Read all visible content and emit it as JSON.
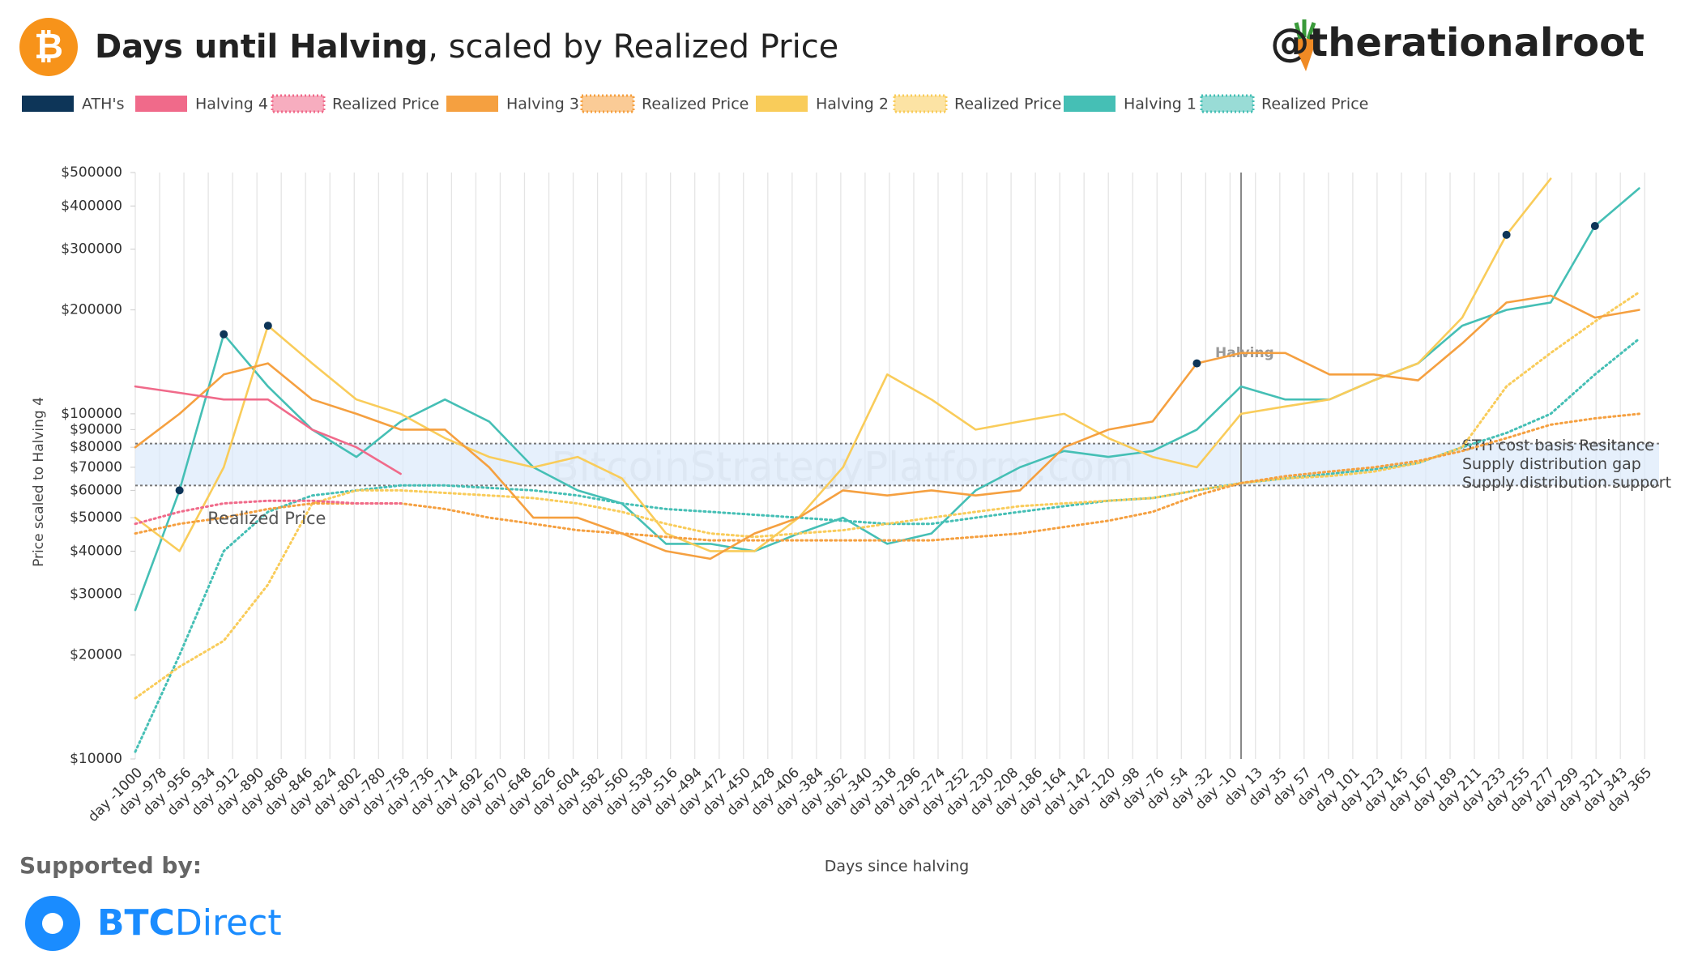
{
  "header": {
    "title_bold": "Days until Halving",
    "title_rest": ", scaled by Realized Price",
    "handle": "@therationalroot"
  },
  "chart_data": {
    "type": "line",
    "y_label": "Price scaled to Halving 4",
    "x_label": "Days since halving",
    "log_y": true,
    "grid": true,
    "xlim": [
      -1000,
      378
    ],
    "ylim": [
      10000,
      500000
    ],
    "x": [
      -1000,
      -960,
      -920,
      -880,
      -840,
      -800,
      -760,
      -720,
      -680,
      -640,
      -600,
      -560,
      -520,
      -480,
      -440,
      -400,
      -360,
      -320,
      -280,
      -240,
      -200,
      -160,
      -120,
      -80,
      -40,
      0,
      40,
      80,
      120,
      160,
      200,
      240,
      280,
      320,
      360
    ],
    "series": [
      {
        "name": "Halving 1",
        "color": "#45bfb5",
        "style": "solid",
        "values": [
          27000,
          60000,
          170000,
          120000,
          90000,
          75000,
          95000,
          110000,
          95000,
          70000,
          60000,
          55000,
          42000,
          42000,
          40000,
          45000,
          50000,
          42000,
          45000,
          60000,
          70000,
          78000,
          75000,
          78000,
          90000,
          120000,
          110000,
          110000,
          125000,
          140000,
          180000,
          200000,
          210000,
          350000,
          450000
        ]
      },
      {
        "name": "Realized Price",
        "color": "#45bfb5",
        "style": "dotted",
        "values": [
          10500,
          20000,
          40000,
          52000,
          58000,
          60000,
          62000,
          62000,
          61000,
          60000,
          58000,
          55000,
          53000,
          52000,
          51000,
          50000,
          49000,
          48000,
          48000,
          50000,
          52000,
          54000,
          56000,
          57000,
          60000,
          63000,
          65000,
          67000,
          69000,
          72000,
          80000,
          88000,
          100000,
          130000,
          165000
        ]
      },
      {
        "name": "Halving 2",
        "color": "#f9cc5a",
        "style": "solid",
        "values": [
          50000,
          40000,
          70000,
          180000,
          140000,
          110000,
          100000,
          85000,
          75000,
          70000,
          75000,
          65000,
          45000,
          40000,
          40000,
          50000,
          70000,
          130000,
          110000,
          90000,
          95000,
          100000,
          85000,
          75000,
          70000,
          100000,
          105000,
          110000,
          125000,
          140000,
          190000,
          330000,
          480000,
          null,
          null
        ]
      },
      {
        "name": "Realized Price",
        "color": "#f9cc5a",
        "style": "dotted",
        "values": [
          15000,
          18500,
          22000,
          32000,
          55000,
          60000,
          60000,
          59000,
          58000,
          57000,
          55000,
          52000,
          48000,
          45000,
          44000,
          45000,
          46000,
          48000,
          50000,
          52000,
          54000,
          55000,
          56000,
          57000,
          60000,
          63000,
          65000,
          66000,
          68000,
          72000,
          80000,
          120000,
          150000,
          185000,
          225000
        ]
      },
      {
        "name": "Halving 3",
        "color": "#f5a040",
        "style": "solid",
        "values": [
          80000,
          100000,
          130000,
          140000,
          110000,
          100000,
          90000,
          90000,
          70000,
          50000,
          50000,
          45000,
          40000,
          38000,
          45000,
          50000,
          60000,
          58000,
          60000,
          58000,
          60000,
          80000,
          90000,
          95000,
          140000,
          150000,
          150000,
          130000,
          130000,
          125000,
          160000,
          210000,
          220000,
          190000,
          200000
        ]
      },
      {
        "name": "Realized Price",
        "color": "#f5a040",
        "style": "dotted",
        "values": [
          45000,
          48000,
          50000,
          53000,
          55000,
          55000,
          55000,
          53000,
          50000,
          48000,
          46000,
          45000,
          44000,
          43000,
          43000,
          43000,
          43000,
          43000,
          43000,
          44000,
          45000,
          47000,
          49000,
          52000,
          58000,
          63000,
          66000,
          68000,
          70000,
          73000,
          78000,
          85000,
          93000,
          97000,
          100000
        ]
      },
      {
        "name": "Halving 4",
        "color": "#f06a8a",
        "style": "solid",
        "values": [
          120000,
          115000,
          110000,
          110000,
          90000,
          80000,
          67000,
          null,
          null,
          null,
          null,
          null,
          null,
          null,
          null,
          null,
          null,
          null,
          null,
          null,
          null,
          null,
          null,
          null,
          null,
          null,
          null,
          null,
          null,
          null,
          null,
          null,
          null,
          null,
          null
        ]
      },
      {
        "name": "Realized Price",
        "color": "#f06a8a",
        "style": "dotted",
        "values": [
          48000,
          52000,
          55000,
          56000,
          56000,
          55000,
          55000,
          null,
          null,
          null,
          null,
          null,
          null,
          null,
          null,
          null,
          null,
          null,
          null,
          null,
          null,
          null,
          null,
          null,
          null,
          null,
          null,
          null,
          null,
          null,
          null,
          null,
          null,
          null,
          null
        ]
      },
      {
        "name": "ATH's",
        "color": "#0d3558",
        "style": "markers",
        "values": [
          null,
          60000,
          170000,
          180000,
          null,
          null,
          null,
          null,
          null,
          null,
          null,
          null,
          null,
          null,
          null,
          null,
          null,
          null,
          null,
          null,
          null,
          null,
          null,
          null,
          140000,
          null,
          null,
          null,
          null,
          null,
          null,
          330000,
          null,
          350000,
          null
        ]
      }
    ],
    "legend_order": [
      8,
      6,
      7,
      4,
      5,
      2,
      3,
      0,
      1
    ],
    "yticks": [
      {
        "value": 10000,
        "label": "$10000"
      },
      {
        "value": 20000,
        "label": "$20000"
      },
      {
        "value": 30000,
        "label": "$30000"
      },
      {
        "value": 40000,
        "label": "$40000"
      },
      {
        "value": 50000,
        "label": "$50000"
      },
      {
        "value": 60000,
        "label": "$60000"
      },
      {
        "value": 70000,
        "label": "$70000"
      },
      {
        "value": 80000,
        "label": "$80000"
      },
      {
        "value": 90000,
        "label": "$90000"
      },
      {
        "value": 100000,
        "label": "$100000"
      },
      {
        "value": 200000,
        "label": "$200000"
      },
      {
        "value": 300000,
        "label": "$300000"
      },
      {
        "value": 400000,
        "label": "$400000"
      },
      {
        "value": 500000,
        "label": "$500000"
      }
    ],
    "xticks": [
      {
        "value": -1000,
        "label": "day -1000"
      },
      {
        "value": -978,
        "label": "day -978"
      },
      {
        "value": -956,
        "label": "day -956"
      },
      {
        "value": -934,
        "label": "day -934"
      },
      {
        "value": -912,
        "label": "day -912"
      },
      {
        "value": -890,
        "label": "day -890"
      },
      {
        "value": -868,
        "label": "day -868"
      },
      {
        "value": -846,
        "label": "day -846"
      },
      {
        "value": -824,
        "label": "day -824"
      },
      {
        "value": -802,
        "label": "day -802"
      },
      {
        "value": -780,
        "label": "day -780"
      },
      {
        "value": -758,
        "label": "day -758"
      },
      {
        "value": -736,
        "label": "day -736"
      },
      {
        "value": -714,
        "label": "day -714"
      },
      {
        "value": -692,
        "label": "day -692"
      },
      {
        "value": -670,
        "label": "day -670"
      },
      {
        "value": -648,
        "label": "day -648"
      },
      {
        "value": -626,
        "label": "day -626"
      },
      {
        "value": -604,
        "label": "day -604"
      },
      {
        "value": -582,
        "label": "day -582"
      },
      {
        "value": -560,
        "label": "day -560"
      },
      {
        "value": -538,
        "label": "day -538"
      },
      {
        "value": -516,
        "label": "day -516"
      },
      {
        "value": -494,
        "label": "day -494"
      },
      {
        "value": -472,
        "label": "day -472"
      },
      {
        "value": -450,
        "label": "day -450"
      },
      {
        "value": -428,
        "label": "day -428"
      },
      {
        "value": -406,
        "label": "day -406"
      },
      {
        "value": -384,
        "label": "day -384"
      },
      {
        "value": -362,
        "label": "day -362"
      },
      {
        "value": -340,
        "label": "day -340"
      },
      {
        "value": -318,
        "label": "day -318"
      },
      {
        "value": -296,
        "label": "day -296"
      },
      {
        "value": -274,
        "label": "day -274"
      },
      {
        "value": -252,
        "label": "day -252"
      },
      {
        "value": -230,
        "label": "day -230"
      },
      {
        "value": -208,
        "label": "day -208"
      },
      {
        "value": -186,
        "label": "day -186"
      },
      {
        "value": -164,
        "label": "day -164"
      },
      {
        "value": -142,
        "label": "day -142"
      },
      {
        "value": -120,
        "label": "day -120"
      },
      {
        "value": -98,
        "label": "day -98"
      },
      {
        "value": -76,
        "label": "day -76"
      },
      {
        "value": -54,
        "label": "day -54"
      },
      {
        "value": -32,
        "label": "day -32"
      },
      {
        "value": -10,
        "label": "day -10"
      },
      {
        "value": 13,
        "label": "day 13"
      },
      {
        "value": 35,
        "label": "day 35"
      },
      {
        "value": 57,
        "label": "day 57"
      },
      {
        "value": 79,
        "label": "day 79"
      },
      {
        "value": 101,
        "label": "day 101"
      },
      {
        "value": 123,
        "label": "day 123"
      },
      {
        "value": 145,
        "label": "day 145"
      },
      {
        "value": 167,
        "label": "day 167"
      },
      {
        "value": 189,
        "label": "day 189"
      },
      {
        "value": 211,
        "label": "day 211"
      },
      {
        "value": 233,
        "label": "day 233"
      },
      {
        "value": 255,
        "label": "day 255"
      },
      {
        "value": 277,
        "label": "day 277"
      },
      {
        "value": 299,
        "label": "day 299"
      },
      {
        "value": 321,
        "label": "day 321"
      },
      {
        "value": 343,
        "label": "day 343"
      },
      {
        "value": 365,
        "label": "day 365"
      }
    ],
    "band": {
      "low": 62000,
      "high": 82000,
      "color": "#dce9fb",
      "high_label": "STH cost basis Resitance",
      "mid_label": "Supply distribution gap",
      "low_label": "Supply distribution support"
    },
    "halving_line": {
      "x": 0,
      "label": "Halving"
    },
    "annotation": {
      "text": "Realized Price",
      "x": -920,
      "y": 50000
    },
    "watermark": "BitcoinStrategyPlatform.com"
  },
  "footer": {
    "supported_by": "Supported by:",
    "sponsor_bold": "BTC",
    "sponsor_rest": "Direct"
  }
}
